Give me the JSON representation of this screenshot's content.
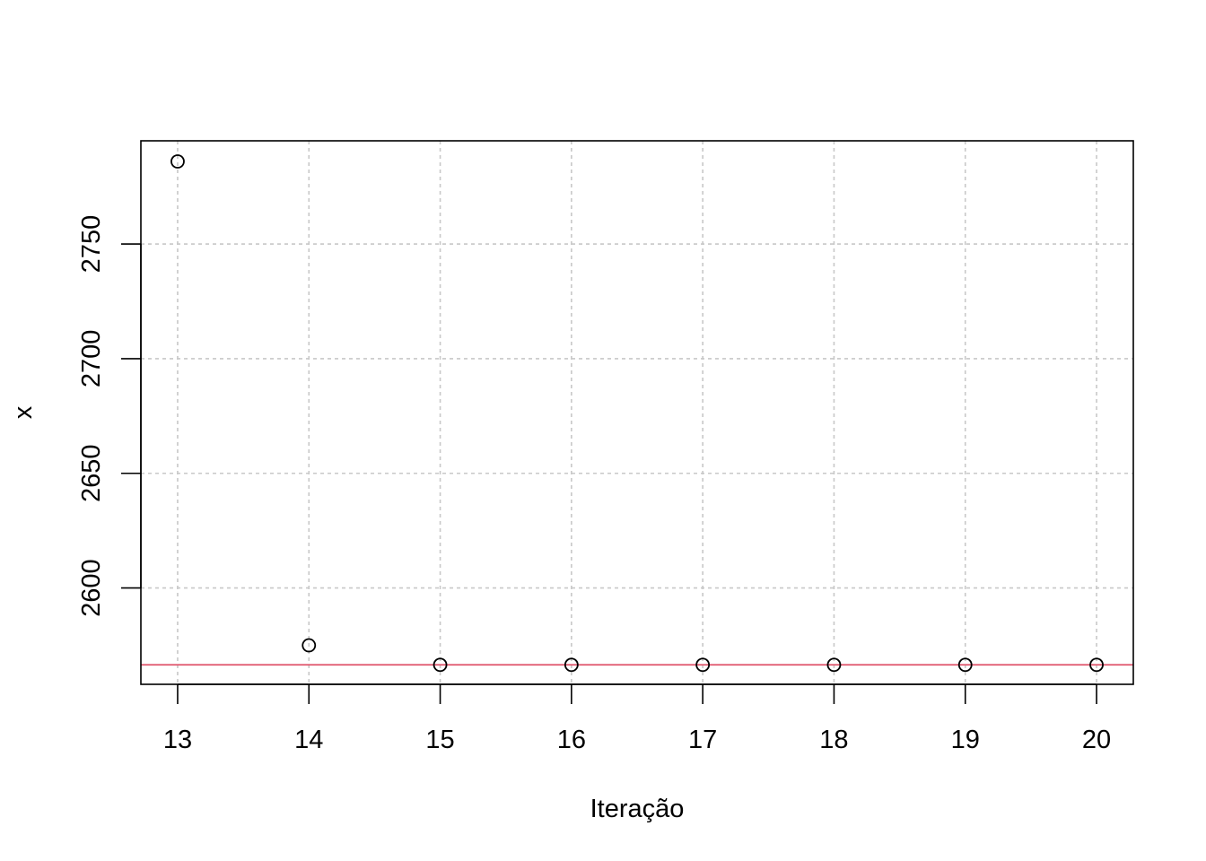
{
  "chart_data": {
    "type": "scatter",
    "title": "",
    "xlabel": "Iteração",
    "ylabel": "x",
    "x": [
      13,
      14,
      15,
      16,
      17,
      18,
      19,
      20
    ],
    "y": [
      2786,
      2575,
      2566.5,
      2566.5,
      2566.5,
      2566.5,
      2566.5,
      2566.5
    ],
    "xlim": [
      12.72,
      20.28
    ],
    "ylim": [
      2558,
      2795
    ],
    "xticks": [
      13,
      14,
      15,
      16,
      17,
      18,
      19,
      20
    ],
    "xtick_labels": [
      "13",
      "14",
      "15",
      "16",
      "17",
      "18",
      "19",
      "20"
    ],
    "yticks": [
      2600,
      2650,
      2700,
      2750
    ],
    "ytick_labels": [
      "2600",
      "2650",
      "2700",
      "2750"
    ],
    "grid": true,
    "reference_line": {
      "y": 2566.5,
      "color": "#DF536B"
    },
    "point_color": "#000000",
    "grid_color": "#C8C8C8"
  }
}
